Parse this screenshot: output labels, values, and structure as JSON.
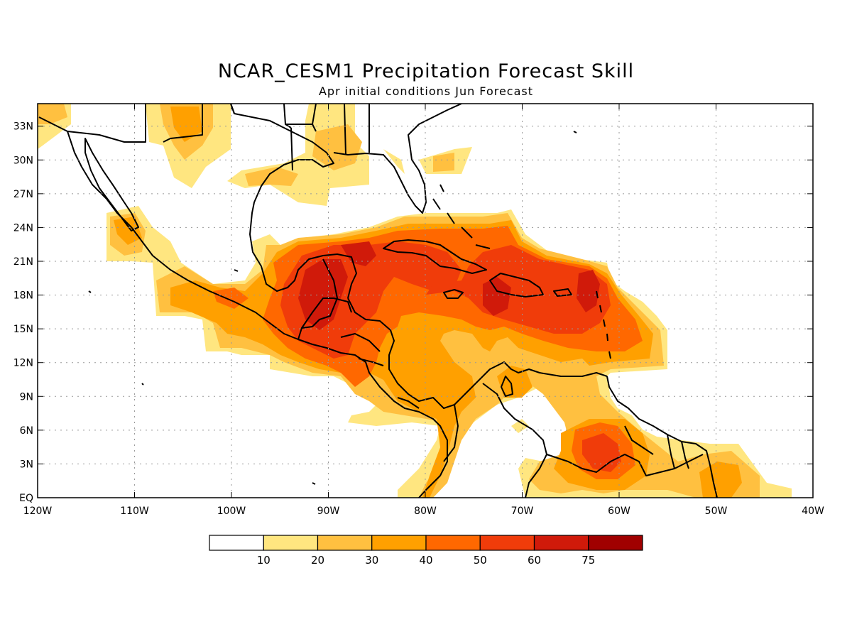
{
  "title": "NCAR_CESM1 Precipitation Forecast Skill",
  "subtitle": "Apr initial conditions  Jun Forecast",
  "map": {
    "lon_range": [
      -120,
      -40
    ],
    "lat_range": [
      0,
      35
    ],
    "lon_ticks": [
      "120W",
      "110W",
      "100W",
      "90W",
      "80W",
      "70W",
      "60W",
      "50W",
      "40W"
    ],
    "lat_ticks": [
      "EQ",
      "3N",
      "6N",
      "9N",
      "12N",
      "15N",
      "18N",
      "21N",
      "24N",
      "27N",
      "30N",
      "33N"
    ],
    "gridlines": true
  },
  "colorbar": {
    "labels": [
      "10",
      "20",
      "30",
      "40",
      "50",
      "60",
      "75"
    ],
    "colors": [
      "#ffffff",
      "#ffe680",
      "#ffc040",
      "#ffa000",
      "#ff6800",
      "#f03c0a",
      "#d01a0a",
      "#a00000"
    ]
  }
}
